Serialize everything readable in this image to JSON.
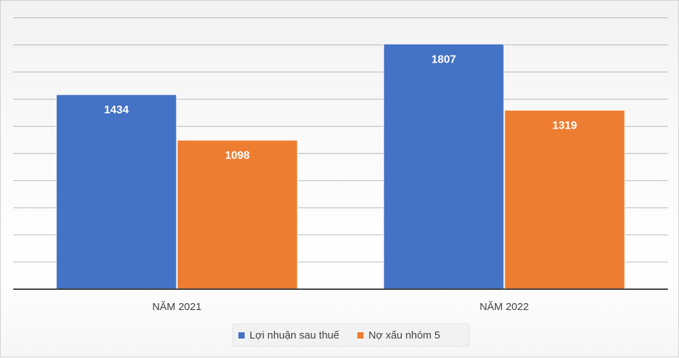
{
  "chart_data": {
    "type": "bar",
    "title": "",
    "xlabel": "",
    "ylabel": "",
    "categories": [
      "NĂM 2021",
      "NĂM 2022"
    ],
    "series": [
      {
        "name": "Lợi nhuận sau thuế",
        "values": [
          1434,
          1807
        ],
        "color": "#4472C4"
      },
      {
        "name": "Nợ xấu nhóm 5",
        "values": [
          1098,
          1319
        ],
        "color": "#ED7D31"
      }
    ],
    "ylim": [
      0,
      2000
    ],
    "grid": true,
    "legend": "bottom-center"
  }
}
